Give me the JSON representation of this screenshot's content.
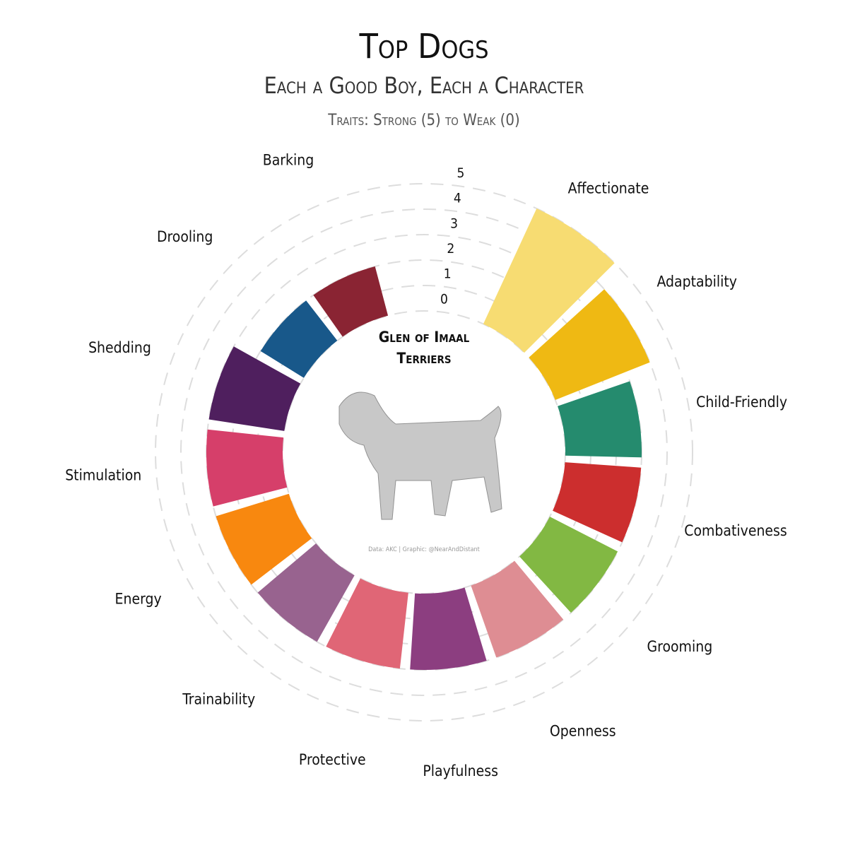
{
  "chart_data": {
    "type": "radial_bar",
    "title": "Top Dogs",
    "subtitle": "Each a Good Boy, Each a Character",
    "scale_note": "Traits: Strong (5) to Weak (0)",
    "center_label": "Glen of Imaal Terriers",
    "caption": "Data: AKC | Graphic: @NearAndDistant",
    "categories": [
      "Affectionate",
      "Adaptability",
      "Child-Friendly",
      "Combativeness",
      "Grooming",
      "Openness",
      "Playfulness",
      "Protective",
      "Trainability",
      "Energy",
      "Stimulation",
      "Shedding",
      "Drooling",
      "Barking"
    ],
    "values": [
      5,
      4,
      3,
      3,
      3,
      3,
      3,
      3,
      3,
      3,
      3,
      3,
      2,
      2
    ],
    "colors": [
      "#f7dc72",
      "#efb913",
      "#258b6e",
      "#cc2e2e",
      "#82b843",
      "#de8d93",
      "#8c3e80",
      "#e06676",
      "#98638f",
      "#f8880f",
      "#d63f6a",
      "#4f1f5e",
      "#18588a",
      "#8a2433"
    ],
    "ylim": [
      0,
      5
    ],
    "yticks": [
      0,
      1,
      2,
      3,
      4,
      5
    ],
    "grid": true
  }
}
